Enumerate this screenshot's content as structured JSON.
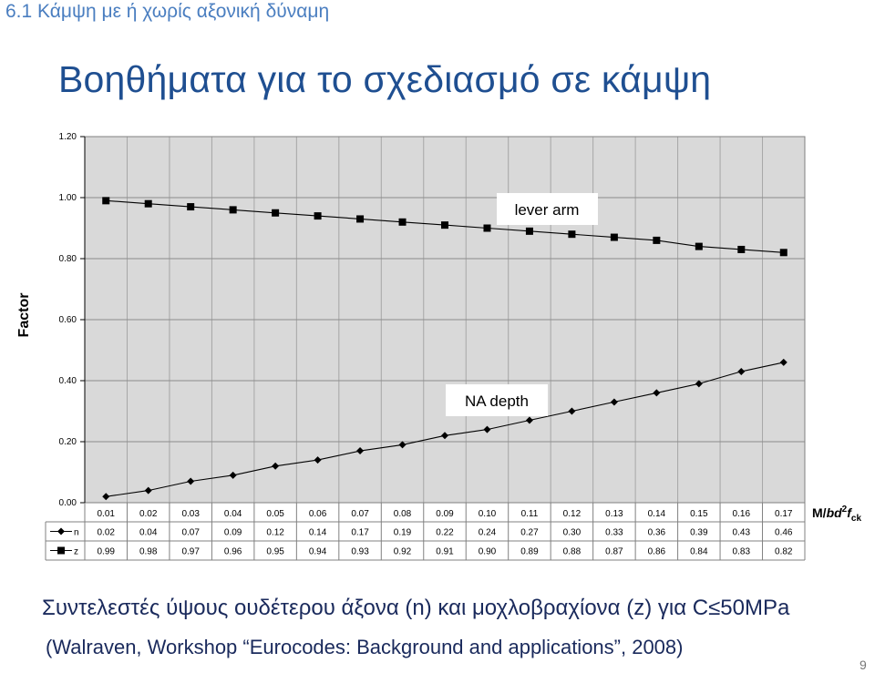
{
  "slide": {
    "section_title": "6.1 Κάμψη με ή χωρίς αξονική δύναμη",
    "main_title": "Βοηθήματα για το σχεδιασμό σε κάμψη",
    "caption_before": "Συντελεστές ύψους ουδέτερου άξονα (n) και μοχλοβραχίονα (z) για C",
    "caption_symbol": "≤",
    "caption_after": "50MPa",
    "source": "(Walraven, Workshop “Eurocodes: Background and applications”, 2008)",
    "page_number": "9"
  },
  "chart_data": {
    "type": "line",
    "ylabel": "Factor",
    "xlabel": "M/bd²fck",
    "xlabel_parts": {
      "m": "M/",
      "bd": "bd",
      "sup": "2",
      "f": "f",
      "sub": "ck"
    },
    "ylim": [
      0,
      1.2
    ],
    "y_ticks": [
      "0.00",
      "0.20",
      "0.40",
      "0.60",
      "0.80",
      "1.00",
      "1.20"
    ],
    "grid": true,
    "categories": [
      "0.01",
      "0.02",
      "0.03",
      "0.04",
      "0.05",
      "0.06",
      "0.07",
      "0.08",
      "0.09",
      "0.10",
      "0.11",
      "0.12",
      "0.13",
      "0.14",
      "0.15",
      "0.16",
      "0.17"
    ],
    "annotations": {
      "lever_arm": "lever arm",
      "na_depth": "NA depth"
    },
    "series": [
      {
        "name": "n",
        "marker": "diamond",
        "values": [
          0.02,
          0.04,
          0.07,
          0.09,
          0.12,
          0.14,
          0.17,
          0.19,
          0.22,
          0.24,
          0.27,
          0.3,
          0.33,
          0.36,
          0.39,
          0.43,
          0.46
        ],
        "labels": [
          "0.02",
          "0.04",
          "0.07",
          "0.09",
          "0.12",
          "0.14",
          "0.17",
          "0.19",
          "0.22",
          "0.24",
          "0.27",
          "0.30",
          "0.33",
          "0.36",
          "0.39",
          "0.43",
          "0.46"
        ]
      },
      {
        "name": "z",
        "marker": "square",
        "values": [
          0.99,
          0.98,
          0.97,
          0.96,
          0.95,
          0.94,
          0.93,
          0.92,
          0.91,
          0.9,
          0.89,
          0.88,
          0.87,
          0.86,
          0.84,
          0.83,
          0.82
        ],
        "labels": [
          "0.99",
          "0.98",
          "0.97",
          "0.96",
          "0.95",
          "0.94",
          "0.93",
          "0.92",
          "0.91",
          "0.90",
          "0.89",
          "0.88",
          "0.87",
          "0.86",
          "0.84",
          "0.83",
          "0.82"
        ]
      }
    ]
  }
}
